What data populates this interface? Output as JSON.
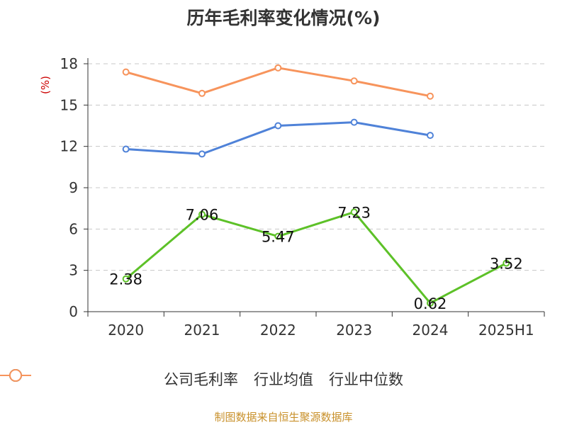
{
  "chart_data": {
    "type": "line",
    "title": "历年毛利率变化情况(%)",
    "ylabel": "(%)",
    "categories": [
      "2020",
      "2021",
      "2022",
      "2023",
      "2024",
      "2025H1"
    ],
    "ylim": [
      0,
      18
    ],
    "yticks": [
      0,
      3,
      6,
      9,
      12,
      15,
      18
    ],
    "grid": true,
    "legend_position": "bottom",
    "series": [
      {
        "name": "公司毛利率",
        "color": "#5dc128",
        "values": [
          2.38,
          7.06,
          5.47,
          7.23,
          0.62,
          3.52
        ],
        "labels": [
          "2.38",
          "7.06",
          "5.47",
          "7.23",
          "0.62",
          "3.52"
        ]
      },
      {
        "name": "行业均值",
        "color": "#4f82d8",
        "values": [
          11.8,
          11.45,
          13.5,
          13.75,
          12.8,
          null
        ]
      },
      {
        "name": "行业中位数",
        "color": "#f7945c",
        "values": [
          17.4,
          15.85,
          17.7,
          16.75,
          15.65,
          null
        ]
      }
    ]
  },
  "source": "制图数据来自恒生聚源数据库"
}
